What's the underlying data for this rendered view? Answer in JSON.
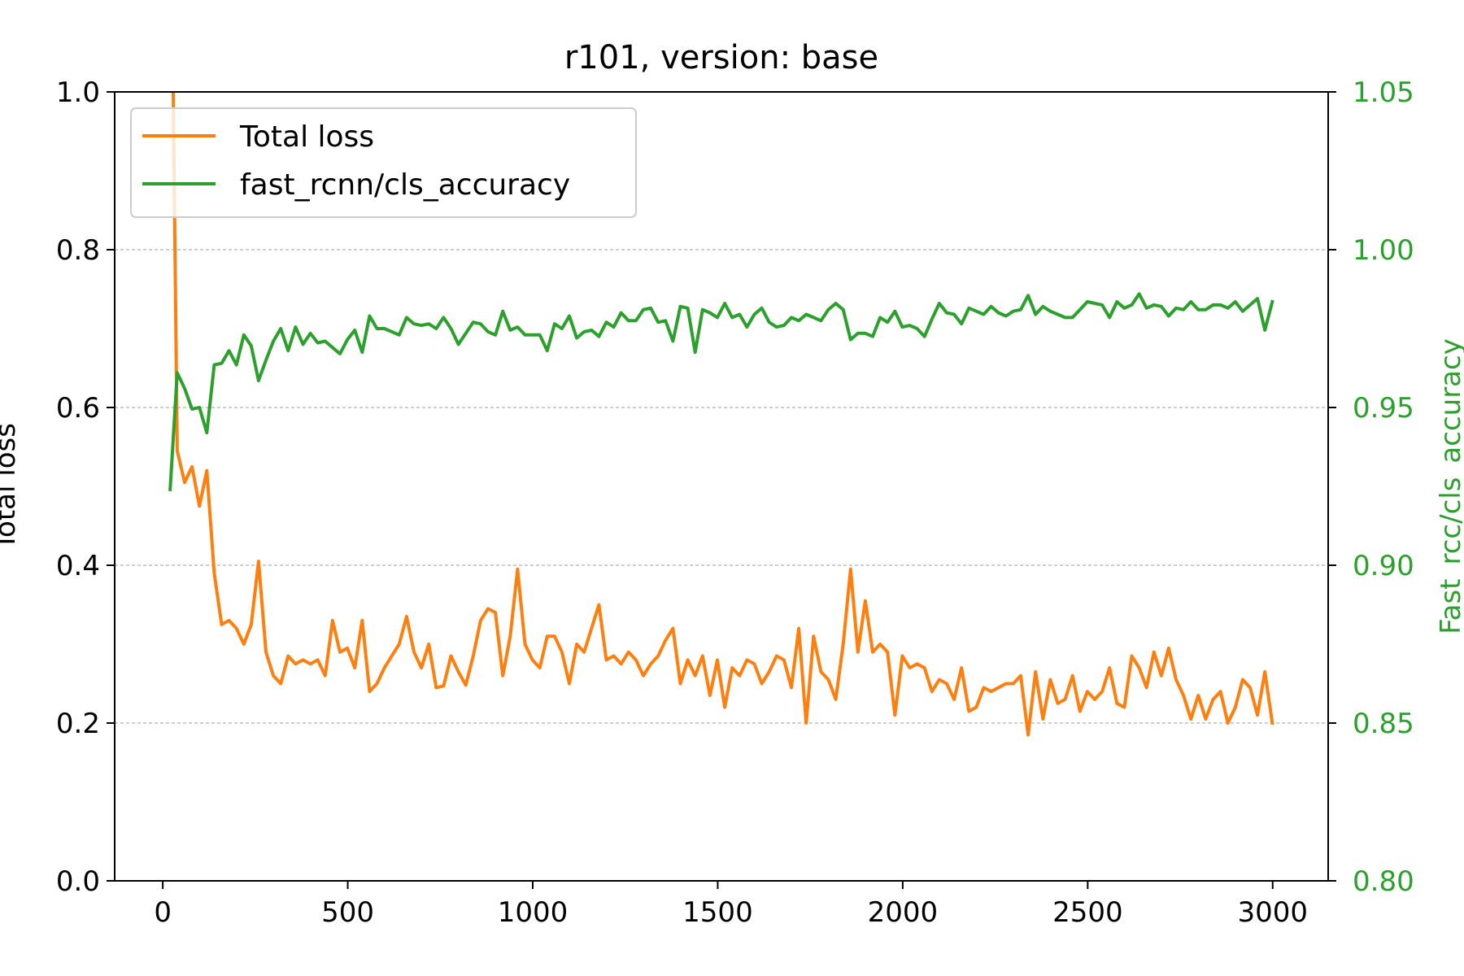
{
  "chart_data": {
    "type": "line",
    "title": "r101, version: base",
    "xlabel": "",
    "xlim": [
      -130,
      3150
    ],
    "xticks": [
      0,
      500,
      1000,
      1500,
      2000,
      2500,
      3000
    ],
    "grid": "horizontal-dashed",
    "legend_position": "upper-left",
    "left_axis": {
      "label": "Total loss",
      "ylim": [
        0.0,
        1.0
      ],
      "ticks": [
        "0.0",
        "0.2",
        "0.4",
        "0.6",
        "0.8",
        "1.0"
      ]
    },
    "right_axis": {
      "label": "Fast_rcc/cls_accuracy",
      "ylim": [
        0.8,
        1.05
      ],
      "ticks": [
        "0.80",
        "0.85",
        "0.90",
        "0.95",
        "1.00",
        "1.05"
      ]
    },
    "series": [
      {
        "name": "Total loss",
        "axis": "left",
        "color": "#ff7f0e",
        "x": [
          20,
          39,
          59,
          79,
          99,
          119,
          139,
          159,
          179,
          199,
          219,
          239,
          259,
          279,
          299,
          319,
          339,
          359,
          379,
          399,
          419,
          439,
          459,
          479,
          499,
          519,
          539,
          559,
          579,
          599,
          619,
          639,
          659,
          679,
          699,
          719,
          739,
          759,
          779,
          799,
          819,
          839,
          859,
          879,
          899,
          919,
          939,
          959,
          979,
          999,
          1019,
          1039,
          1059,
          1079,
          1099,
          1119,
          1139,
          1159,
          1179,
          1199,
          1219,
          1239,
          1259,
          1279,
          1299,
          1319,
          1339,
          1359,
          1379,
          1399,
          1419,
          1439,
          1459,
          1479,
          1499,
          1519,
          1539,
          1559,
          1579,
          1599,
          1619,
          1639,
          1659,
          1679,
          1699,
          1719,
          1739,
          1759,
          1779,
          1799,
          1819,
          1839,
          1859,
          1879,
          1899,
          1919,
          1939,
          1959,
          1979,
          1999,
          2019,
          2039,
          2059,
          2079,
          2099,
          2119,
          2139,
          2159,
          2179,
          2199,
          2219,
          2239,
          2259,
          2279,
          2299,
          2319,
          2339,
          2359,
          2379,
          2399,
          2419,
          2439,
          2459,
          2479,
          2499,
          2519,
          2539,
          2559,
          2579,
          2599,
          2619,
          2639,
          2659,
          2679,
          2699,
          2719,
          2739,
          2759,
          2779,
          2799,
          2819,
          2839,
          2859,
          2879,
          2899,
          2919,
          2939,
          2959,
          2979,
          2999
        ],
        "values": [
          1.35,
          0.545,
          0.505,
          0.525,
          0.475,
          0.52,
          0.39,
          0.325,
          0.33,
          0.32,
          0.3,
          0.325,
          0.405,
          0.29,
          0.26,
          0.25,
          0.285,
          0.275,
          0.28,
          0.275,
          0.28,
          0.26,
          0.33,
          0.29,
          0.295,
          0.27,
          0.33,
          0.24,
          0.25,
          0.27,
          0.285,
          0.3,
          0.335,
          0.29,
          0.27,
          0.3,
          0.245,
          0.247,
          0.285,
          0.265,
          0.248,
          0.285,
          0.33,
          0.345,
          0.34,
          0.26,
          0.31,
          0.395,
          0.3,
          0.28,
          0.27,
          0.31,
          0.31,
          0.29,
          0.25,
          0.3,
          0.29,
          0.32,
          0.35,
          0.28,
          0.285,
          0.275,
          0.29,
          0.28,
          0.26,
          0.275,
          0.285,
          0.305,
          0.32,
          0.25,
          0.28,
          0.26,
          0.285,
          0.235,
          0.28,
          0.22,
          0.27,
          0.26,
          0.28,
          0.275,
          0.25,
          0.265,
          0.285,
          0.28,
          0.245,
          0.32,
          0.2,
          0.31,
          0.265,
          0.255,
          0.23,
          0.3,
          0.395,
          0.29,
          0.355,
          0.29,
          0.3,
          0.29,
          0.21,
          0.285,
          0.27,
          0.275,
          0.27,
          0.24,
          0.255,
          0.25,
          0.23,
          0.27,
          0.215,
          0.22,
          0.245,
          0.24,
          0.245,
          0.25,
          0.25,
          0.26,
          0.185,
          0.265,
          0.205,
          0.255,
          0.225,
          0.23,
          0.26,
          0.215,
          0.24,
          0.23,
          0.24,
          0.27,
          0.225,
          0.22,
          0.285,
          0.27,
          0.245,
          0.29,
          0.26,
          0.295,
          0.255,
          0.235,
          0.205,
          0.235,
          0.205,
          0.23,
          0.24,
          0.2,
          0.22,
          0.255,
          0.245,
          0.21,
          0.265,
          0.2
        ]
      },
      {
        "name": "fast_rcnn/cls_accuracy",
        "axis": "right",
        "color": "#2ca02c",
        "x": [
          20,
          39,
          59,
          79,
          99,
          119,
          139,
          159,
          179,
          199,
          219,
          239,
          259,
          279,
          299,
          319,
          339,
          359,
          379,
          399,
          419,
          439,
          459,
          479,
          499,
          519,
          539,
          559,
          579,
          599,
          619,
          639,
          659,
          679,
          699,
          719,
          739,
          759,
          779,
          799,
          819,
          839,
          859,
          879,
          899,
          919,
          939,
          959,
          979,
          999,
          1019,
          1039,
          1059,
          1079,
          1099,
          1119,
          1139,
          1159,
          1179,
          1199,
          1219,
          1239,
          1259,
          1279,
          1299,
          1319,
          1339,
          1359,
          1379,
          1399,
          1419,
          1439,
          1459,
          1479,
          1499,
          1519,
          1539,
          1559,
          1579,
          1599,
          1619,
          1639,
          1659,
          1679,
          1699,
          1719,
          1739,
          1759,
          1779,
          1799,
          1819,
          1839,
          1859,
          1879,
          1899,
          1919,
          1939,
          1959,
          1979,
          1999,
          2019,
          2039,
          2059,
          2079,
          2099,
          2119,
          2139,
          2159,
          2179,
          2199,
          2219,
          2239,
          2259,
          2279,
          2299,
          2319,
          2339,
          2359,
          2379,
          2399,
          2419,
          2439,
          2459,
          2479,
          2499,
          2519,
          2539,
          2559,
          2579,
          2599,
          2619,
          2639,
          2659,
          2679,
          2699,
          2719,
          2739,
          2759,
          2779,
          2799,
          2819,
          2839,
          2859,
          2879,
          2899,
          2919,
          2939,
          2959,
          2979,
          2999
        ],
        "values": [
          0.924,
          0.961,
          0.956,
          0.9495,
          0.95,
          0.942,
          0.9635,
          0.964,
          0.968,
          0.9635,
          0.973,
          0.9695,
          0.9585,
          0.965,
          0.971,
          0.975,
          0.968,
          0.9755,
          0.97,
          0.9735,
          0.9705,
          0.971,
          0.969,
          0.967,
          0.9715,
          0.9745,
          0.9675,
          0.979,
          0.975,
          0.975,
          0.974,
          0.973,
          0.9785,
          0.9765,
          0.976,
          0.9765,
          0.975,
          0.9785,
          0.975,
          0.97,
          0.9735,
          0.977,
          0.9765,
          0.974,
          0.973,
          0.9805,
          0.9745,
          0.9755,
          0.973,
          0.973,
          0.973,
          0.968,
          0.9765,
          0.975,
          0.979,
          0.972,
          0.974,
          0.9745,
          0.9725,
          0.977,
          0.9755,
          0.98,
          0.9775,
          0.9775,
          0.981,
          0.9815,
          0.977,
          0.9775,
          0.971,
          0.982,
          0.9815,
          0.9675,
          0.981,
          0.98,
          0.9785,
          0.983,
          0.9785,
          0.9795,
          0.9755,
          0.9795,
          0.9815,
          0.977,
          0.9755,
          0.976,
          0.9785,
          0.9775,
          0.9795,
          0.9785,
          0.9775,
          0.981,
          0.983,
          0.981,
          0.9715,
          0.9735,
          0.9735,
          0.9725,
          0.9785,
          0.977,
          0.9805,
          0.9755,
          0.976,
          0.975,
          0.9725,
          0.978,
          0.983,
          0.98,
          0.9795,
          0.9765,
          0.9815,
          0.9805,
          0.9795,
          0.982,
          0.98,
          0.979,
          0.9805,
          0.981,
          0.9855,
          0.9795,
          0.982,
          0.9805,
          0.9795,
          0.9785,
          0.9785,
          0.981,
          0.9835,
          0.983,
          0.9825,
          0.9785,
          0.9835,
          0.9815,
          0.9825,
          0.986,
          0.9815,
          0.9825,
          0.982,
          0.979,
          0.9815,
          0.981,
          0.9835,
          0.981,
          0.981,
          0.9825,
          0.9825,
          0.9815,
          0.9835,
          0.9805,
          0.9825,
          0.9845,
          0.9745,
          0.9835
        ]
      }
    ]
  }
}
